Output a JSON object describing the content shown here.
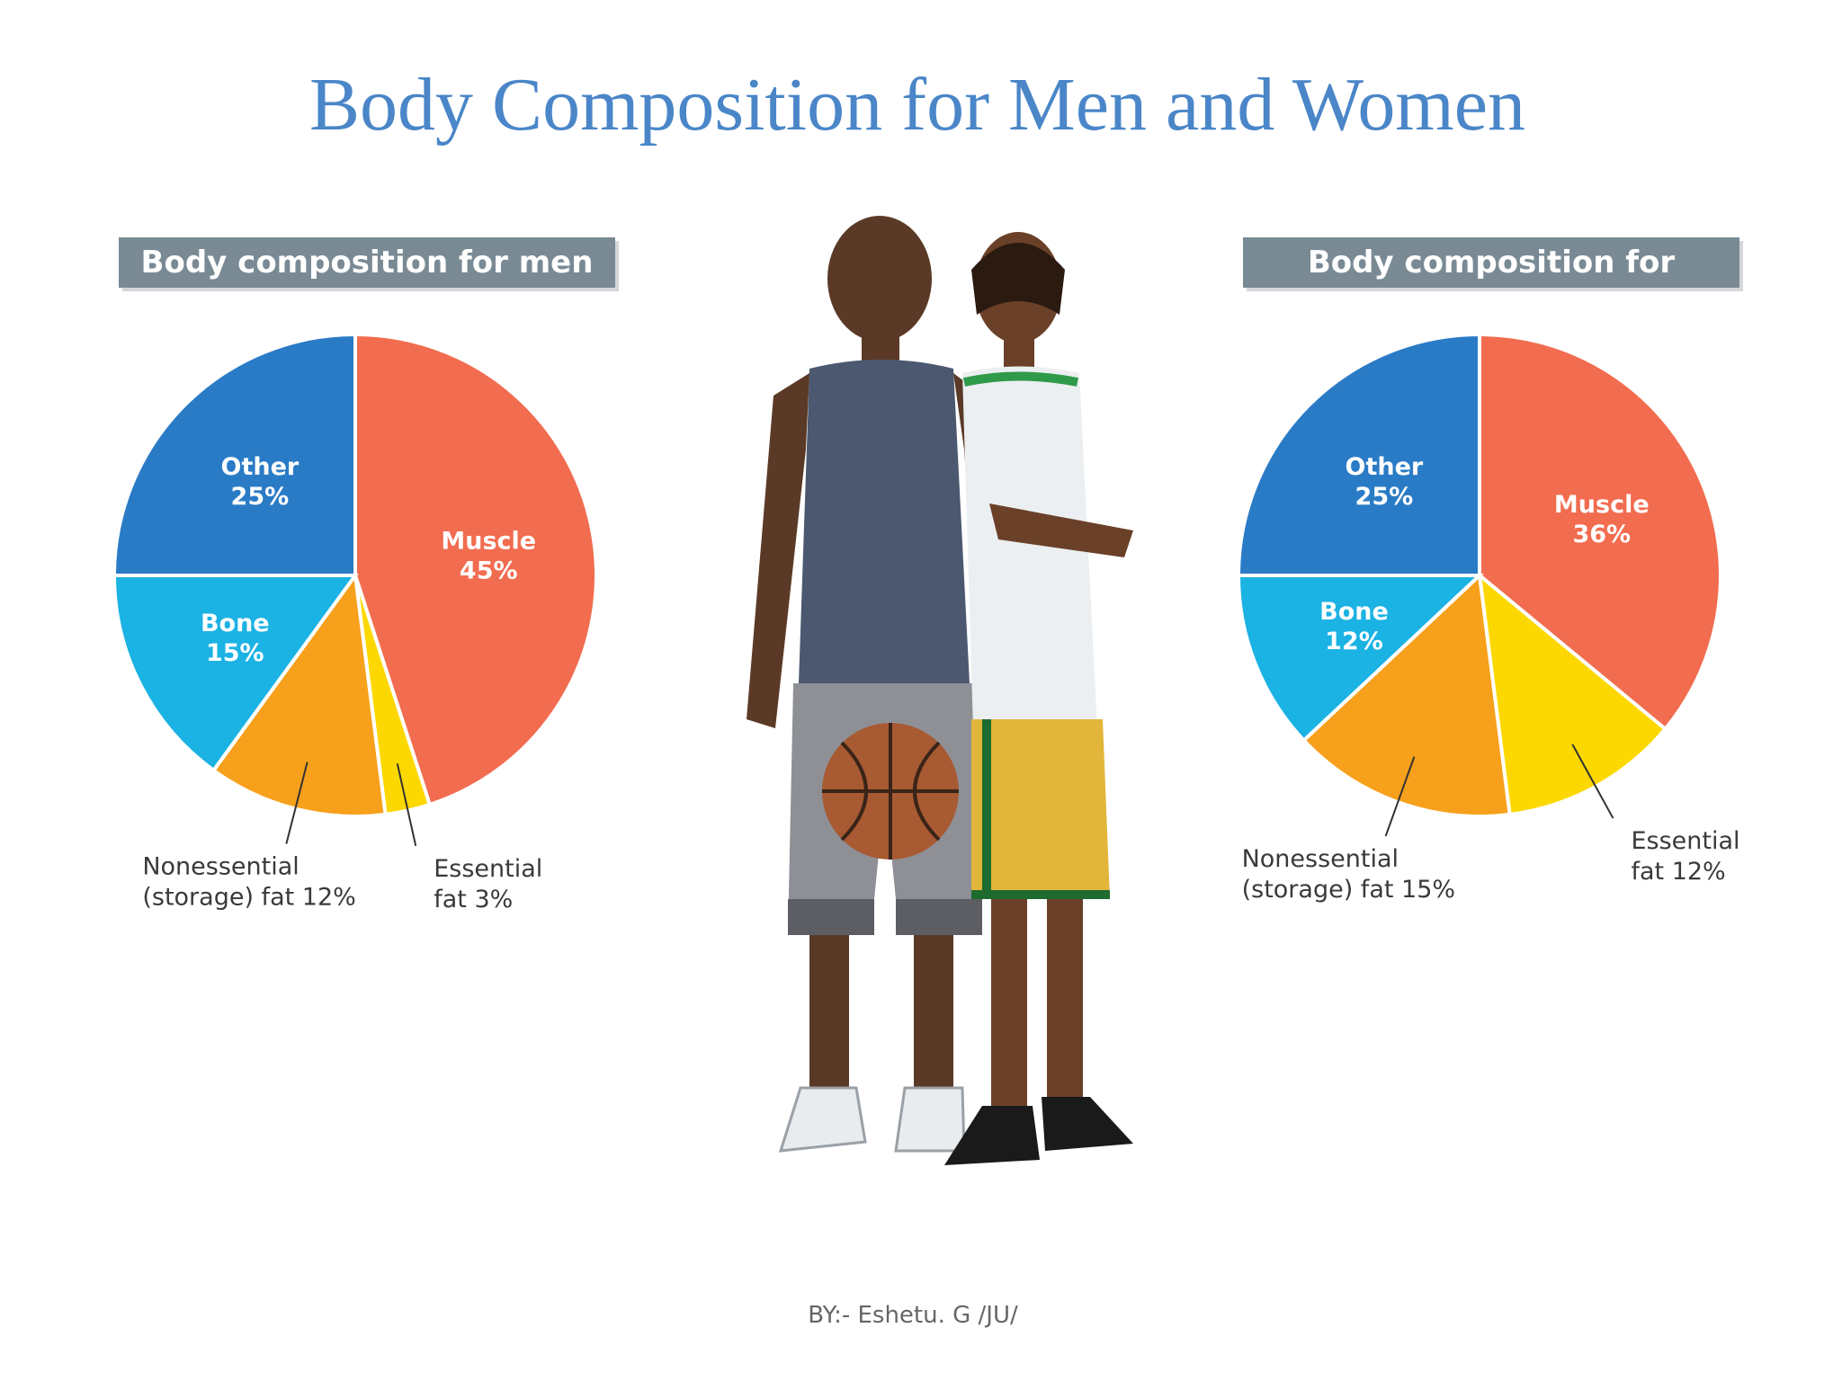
{
  "title": "Body Composition for Men and Women",
  "footer": "BY:- Eshetu. G  /JU/",
  "colors": {
    "title": "#4a86c8",
    "muscle": "#f26c4f",
    "essential_fat": "#fcd800",
    "nonessential_fat": "#f7a01b",
    "bone": "#1bb2e4",
    "other": "#2a7bc6",
    "header_bg": "#7a8a95"
  },
  "chart_data": [
    {
      "type": "pie",
      "title": "Body composition for men",
      "slices": [
        {
          "label": "Muscle",
          "value": 45,
          "value_label": "45%",
          "color": "#f26c4f",
          "label_position": "inside"
        },
        {
          "label": "Essential fat",
          "value": 3,
          "value_label": "3%",
          "color": "#fcd800",
          "label_position": "outside",
          "label_lines": [
            "Essential",
            "fat 3%"
          ]
        },
        {
          "label": "Nonessential (storage) fat",
          "value": 12,
          "value_label": "12%",
          "color": "#f7a01b",
          "label_position": "outside",
          "label_lines": [
            "Nonessential",
            "(storage) fat 12%"
          ]
        },
        {
          "label": "Bone",
          "value": 15,
          "value_label": "15%",
          "color": "#1bb2e4",
          "label_position": "inside"
        },
        {
          "label": "Other",
          "value": 25,
          "value_label": "25%",
          "color": "#2a7bc6",
          "label_position": "inside"
        }
      ]
    },
    {
      "type": "pie",
      "title": "Body composition for women",
      "slices": [
        {
          "label": "Muscle",
          "value": 36,
          "value_label": "36%",
          "color": "#f26c4f",
          "label_position": "inside"
        },
        {
          "label": "Essential fat",
          "value": 12,
          "value_label": "12%",
          "color": "#fcd800",
          "label_position": "outside",
          "label_lines": [
            "Essential",
            "fat 12%"
          ]
        },
        {
          "label": "Nonessential (storage) fat",
          "value": 15,
          "value_label": "15%",
          "color": "#f7a01b",
          "label_position": "outside",
          "label_lines": [
            "Nonessential",
            "(storage) fat 15%"
          ]
        },
        {
          "label": "Bone",
          "value": 12,
          "value_label": "12%",
          "color": "#1bb2e4",
          "label_position": "inside"
        },
        {
          "label": "Other",
          "value": 25,
          "value_label": "25%",
          "color": "#2a7bc6",
          "label_position": "inside"
        }
      ]
    }
  ]
}
